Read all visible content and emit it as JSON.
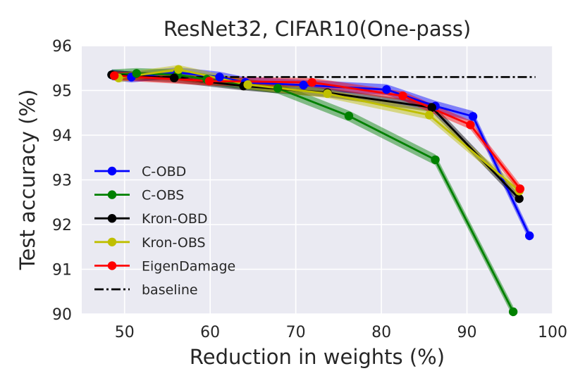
{
  "chart_data": {
    "type": "line",
    "title": "ResNet32, CIFAR10(One-pass)",
    "xlabel": "Reduction in weights (%)",
    "ylabel": "Test accuracy (%)",
    "xlim": [
      45,
      100
    ],
    "ylim": [
      90,
      96
    ],
    "xticks": [
      50,
      60,
      70,
      80,
      90,
      100
    ],
    "yticks": [
      90,
      91,
      92,
      93,
      94,
      95,
      96
    ],
    "grid": true,
    "legend_position": "center-left",
    "baseline": {
      "name": "baseline",
      "y": 95.3,
      "x_range": [
        48.5,
        98
      ],
      "color": "#000000",
      "style": "dash-dot"
    },
    "series": [
      {
        "name": "C-OBD",
        "color": "#0000ff",
        "band": 0.12,
        "x": [
          48.5,
          50.8,
          56.2,
          61.1,
          64.1,
          70.9,
          80.6,
          86.3,
          90.7,
          97.3
        ],
        "y": [
          95.35,
          95.3,
          95.4,
          95.3,
          95.18,
          95.12,
          95.02,
          94.65,
          94.42,
          91.75
        ]
      },
      {
        "name": "C-OBS",
        "color": "#008000",
        "band": 0.12,
        "x": [
          48.5,
          51.4,
          56.2,
          59.6,
          67.9,
          76.2,
          86.3,
          95.4
        ],
        "y": [
          95.35,
          95.38,
          95.35,
          95.25,
          95.05,
          94.43,
          93.45,
          90.05
        ]
      },
      {
        "name": "Kron-OBD",
        "color": "#000000",
        "band": 0.1,
        "x": [
          48.5,
          55.8,
          63.9,
          73.7,
          85.9,
          96.1
        ],
        "y": [
          95.35,
          95.28,
          95.1,
          94.95,
          94.62,
          92.58
        ]
      },
      {
        "name": "Kron-OBS",
        "color": "#bfbf00",
        "band": 0.1,
        "x": [
          49.3,
          56.3,
          64.4,
          73.7,
          85.6,
          96.1
        ],
        "y": [
          95.28,
          95.47,
          95.13,
          94.93,
          94.45,
          92.75
        ]
      },
      {
        "name": "EigenDamage",
        "color": "#ff0000",
        "band": 0.1,
        "x": [
          48.8,
          59.9,
          71.9,
          82.5,
          90.4,
          96.2
        ],
        "y": [
          95.33,
          95.21,
          95.18,
          94.88,
          94.23,
          92.8
        ]
      }
    ]
  }
}
